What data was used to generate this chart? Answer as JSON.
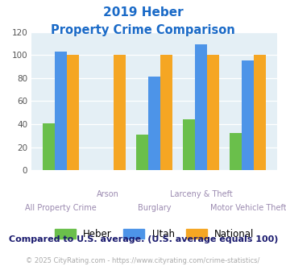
{
  "title_line1": "2019 Heber",
  "title_line2": "Property Crime Comparison",
  "categories": [
    "All Property Crime",
    "Arson",
    "Burglary",
    "Larceny & Theft",
    "Motor Vehicle Theft"
  ],
  "heber": [
    41,
    0,
    31,
    44,
    32
  ],
  "utah": [
    103,
    0,
    81,
    109,
    95
  ],
  "national": [
    100,
    100,
    100,
    100,
    100
  ],
  "heber_color": "#6abf4b",
  "utah_color": "#4d94e8",
  "national_color": "#f5a623",
  "title_color": "#1a6ac7",
  "plot_bg": "#e4eff5",
  "xlabel_color": "#9b8ab0",
  "note_color": "#1a1a6e",
  "footer_color": "#aaaaaa",
  "ylim": [
    0,
    120
  ],
  "yticks": [
    0,
    20,
    40,
    60,
    80,
    100,
    120
  ],
  "note_text": "Compared to U.S. average. (U.S. average equals 100)",
  "footer_text": "© 2025 CityRating.com - https://www.cityrating.com/crime-statistics/"
}
